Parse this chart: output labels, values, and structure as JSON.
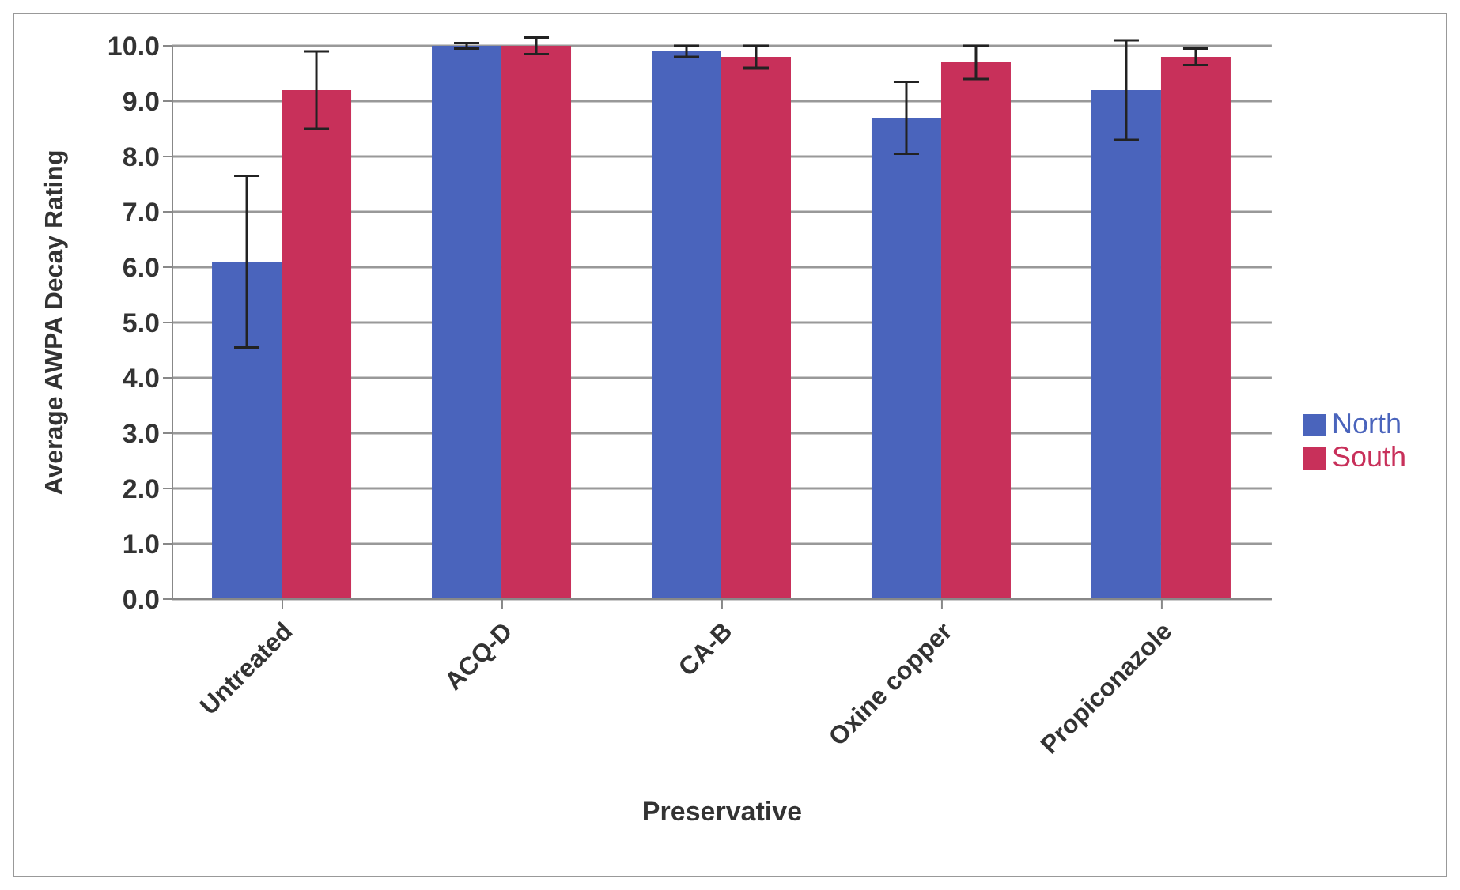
{
  "chart_data": {
    "type": "bar",
    "xlabel": "Preservative",
    "ylabel": "Average AWPA Decay Rating",
    "categories": [
      "Untreated",
      "ACQ-D",
      "CA-B",
      "Oxine copper",
      "Propiconazole"
    ],
    "series": [
      {
        "name": "North",
        "color": "#4a64bc",
        "values": [
          6.1,
          10.0,
          9.9,
          8.7,
          9.2
        ],
        "errors": [
          1.55,
          0.05,
          0.1,
          0.65,
          0.9
        ]
      },
      {
        "name": "South",
        "color": "#c8305a",
        "values": [
          9.2,
          10.0,
          9.8,
          9.7,
          9.8
        ],
        "errors": [
          0.7,
          0.15,
          0.2,
          0.3,
          0.15
        ]
      }
    ],
    "ylim": [
      0,
      10
    ],
    "yticks": [
      {
        "value": 0,
        "label": "0.0"
      },
      {
        "value": 1,
        "label": "1.0"
      },
      {
        "value": 2,
        "label": "2.0"
      },
      {
        "value": 3,
        "label": "3.0"
      },
      {
        "value": 4,
        "label": "4.0"
      },
      {
        "value": 5,
        "label": "5.0"
      },
      {
        "value": 6,
        "label": "6.0"
      },
      {
        "value": 7,
        "label": "7.0"
      },
      {
        "value": 8,
        "label": "8.0"
      },
      {
        "value": 9,
        "label": "9.0"
      },
      {
        "value": 10,
        "label": "10.0"
      }
    ],
    "grid": "y",
    "legend": "right"
  }
}
